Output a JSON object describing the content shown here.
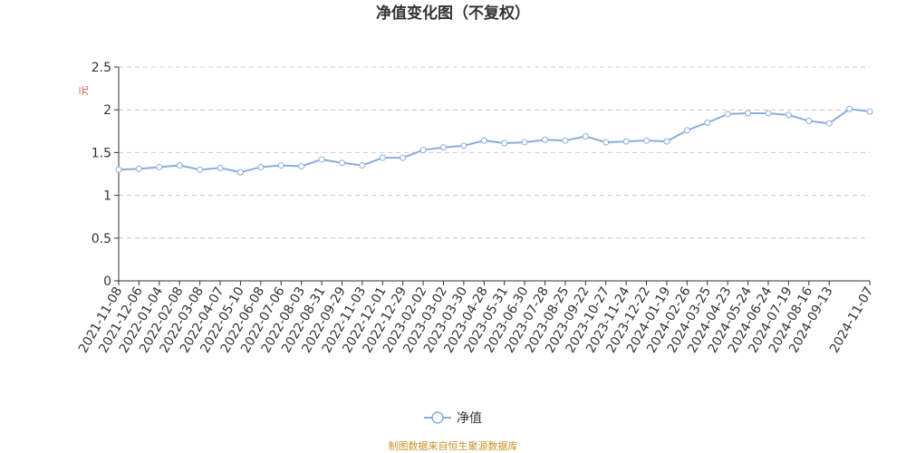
{
  "chart_data": {
    "type": "line",
    "title": "净值变化图（不复权）",
    "y_label": "元",
    "source": "制图数据来自恒生聚源数据库",
    "categories": [
      "2021-11-08",
      "2021-12-06",
      "2022-01-04",
      "2022-02-08",
      "2022-03-08",
      "2022-04-07",
      "2022-05-10",
      "2022-06-08",
      "2022-07-06",
      "2022-08-03",
      "2022-08-31",
      "2022-09-29",
      "2022-11-03",
      "2022-12-01",
      "2022-12-29",
      "2023-02-02",
      "2023-03-02",
      "2023-03-30",
      "2023-04-28",
      "2023-05-31",
      "2023-06-30",
      "2023-07-28",
      "2023-08-25",
      "2023-09-22",
      "2023-10-27",
      "2023-11-24",
      "2023-12-22",
      "2024-01-19",
      "2024-02-26",
      "2024-03-25",
      "2024-04-23",
      "2024-05-24",
      "2024-06-24",
      "2024-07-19",
      "2024-08-16",
      "2024-09-13",
      null,
      "2024-11-07"
    ],
    "series": [
      {
        "name": "净值",
        "color": "#8aaed8",
        "values": [
          1.3,
          1.31,
          1.33,
          1.35,
          1.3,
          1.32,
          1.27,
          1.33,
          1.35,
          1.34,
          1.42,
          1.38,
          1.35,
          1.44,
          1.44,
          1.53,
          1.56,
          1.58,
          1.64,
          1.61,
          1.62,
          1.65,
          1.64,
          1.69,
          1.62,
          1.63,
          1.64,
          1.63,
          1.76,
          1.85,
          1.95,
          1.96,
          1.96,
          1.94,
          1.87,
          1.84,
          2.01,
          1.98
        ]
      }
    ],
    "ylim": [
      0,
      2.5
    ],
    "yticks": [
      0,
      0.5,
      1,
      1.5,
      2,
      2.5
    ],
    "grid": true,
    "legend": "bottom"
  }
}
